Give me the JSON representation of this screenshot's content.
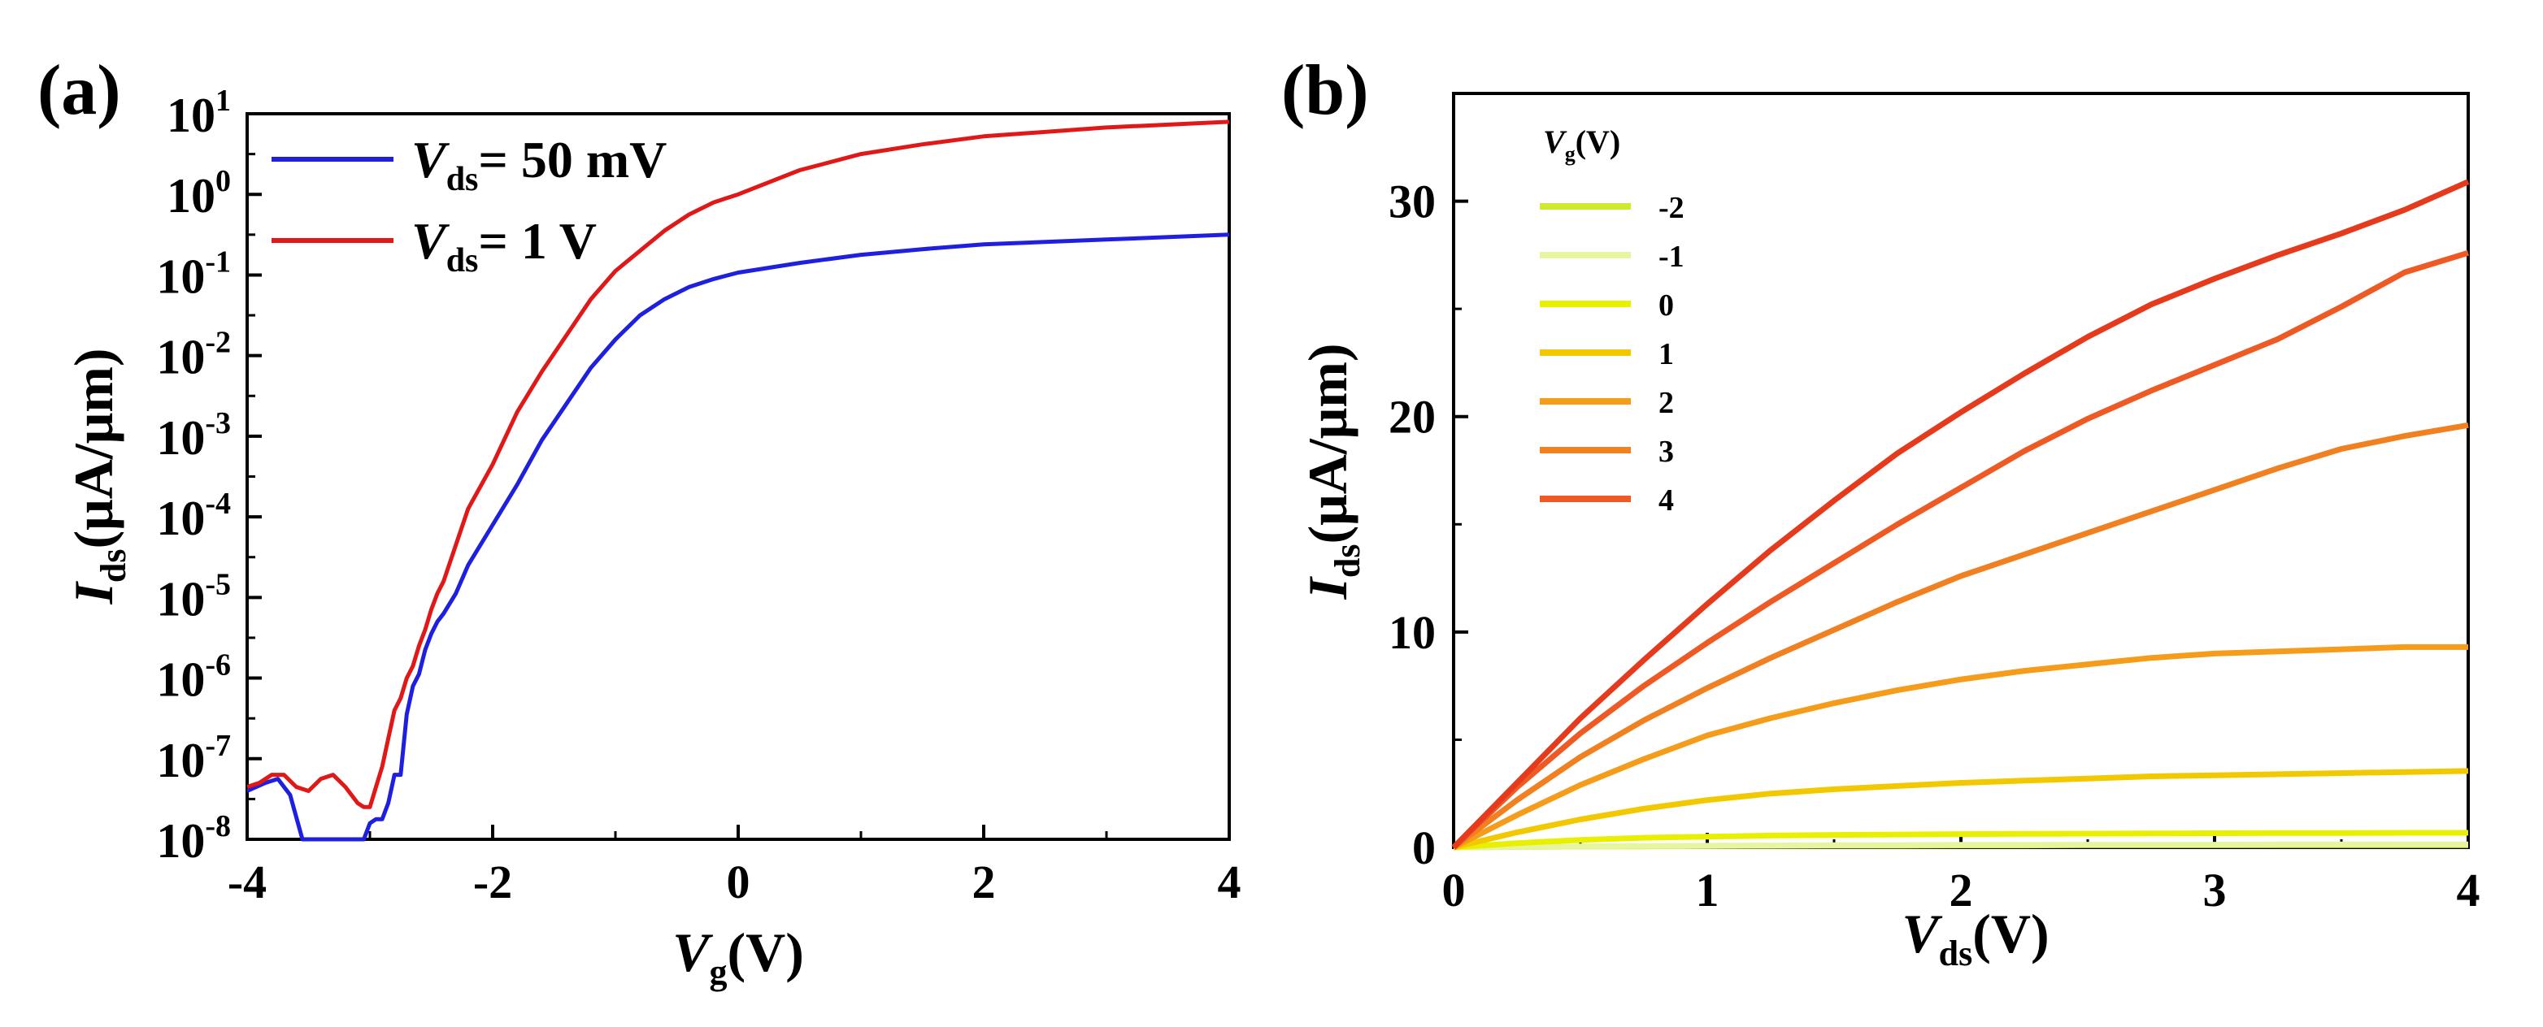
{
  "figure": {
    "panel_a_label": "(a)",
    "panel_b_label": "(b)"
  },
  "chart_data": [
    {
      "type": "line",
      "yscale": "log",
      "xlim": [
        -4,
        4
      ],
      "ylim": [
        1e-08,
        10
      ],
      "xticks": [
        "-4",
        "-2",
        "0",
        "2",
        "4"
      ],
      "xtick_values": [
        -4,
        -2,
        0,
        2,
        4
      ],
      "yticks": [
        {
          "base": "10",
          "exp": "1",
          "value": 1
        },
        {
          "base": "10",
          "exp": "0",
          "value": 0
        },
        {
          "base": "10",
          "exp": "-1",
          "value": -1
        },
        {
          "base": "10",
          "exp": "-2",
          "value": -2
        },
        {
          "base": "10",
          "exp": "-3",
          "value": -3
        },
        {
          "base": "10",
          "exp": "-4",
          "value": -4
        },
        {
          "base": "10",
          "exp": "-5",
          "value": -5
        },
        {
          "base": "10",
          "exp": "-6",
          "value": -6
        },
        {
          "base": "10",
          "exp": "-7",
          "value": -7
        },
        {
          "base": "10",
          "exp": "-8",
          "value": -8
        }
      ],
      "xlabel": {
        "main": "V",
        "sub": "g",
        "tail": "(V)"
      },
      "ylabel": {
        "main": "I",
        "sub": "ds",
        "tail": "(μA/μm)"
      },
      "legend_position": "top-left",
      "series": [
        {
          "name": "Vds = 50 mV",
          "legend_main": "V",
          "legend_sub": "ds",
          "legend_tail": "= 50 mV",
          "color": "#1f1fe0",
          "x": [
            -4.0,
            -3.85,
            -3.75,
            -3.65,
            -3.55,
            -3.05,
            -3.0,
            -2.95,
            -2.9,
            -2.85,
            -2.8,
            -2.75,
            -2.7,
            -2.65,
            -2.6,
            -2.55,
            -2.5,
            -2.45,
            -2.4,
            -2.3,
            -2.2,
            -2.0,
            -1.8,
            -1.6,
            -1.4,
            -1.2,
            -1.0,
            -0.8,
            -0.6,
            -0.4,
            -0.2,
            0.0,
            0.5,
            1.0,
            1.5,
            2.0,
            3.0,
            4.0
          ],
          "y": [
            -7.4,
            -7.3,
            -7.25,
            -7.45,
            -8.0,
            -8.0,
            -7.8,
            -7.75,
            -7.75,
            -7.55,
            -7.2,
            -7.2,
            -6.45,
            -6.1,
            -5.95,
            -5.65,
            -5.45,
            -5.3,
            -5.2,
            -4.95,
            -4.6,
            -4.1,
            -3.6,
            -3.05,
            -2.6,
            -2.15,
            -1.8,
            -1.5,
            -1.3,
            -1.15,
            -1.05,
            -0.97,
            -0.85,
            -0.75,
            -0.68,
            -0.62,
            -0.56,
            -0.5
          ]
        },
        {
          "name": "Vds = 1 V",
          "legend_main": "V",
          "legend_sub": "ds",
          "legend_tail": "= 1 V",
          "color": "#e01818",
          "x": [
            -4.0,
            -3.9,
            -3.8,
            -3.7,
            -3.6,
            -3.5,
            -3.4,
            -3.3,
            -3.2,
            -3.1,
            -3.05,
            -3.0,
            -2.95,
            -2.9,
            -2.85,
            -2.8,
            -2.75,
            -2.7,
            -2.65,
            -2.6,
            -2.55,
            -2.5,
            -2.45,
            -2.4,
            -2.3,
            -2.2,
            -2.0,
            -1.8,
            -1.6,
            -1.4,
            -1.2,
            -1.0,
            -0.8,
            -0.6,
            -0.4,
            -0.2,
            0.0,
            0.5,
            1.0,
            1.5,
            2.0,
            3.0,
            4.0
          ],
          "y": [
            -7.35,
            -7.3,
            -7.2,
            -7.2,
            -7.35,
            -7.4,
            -7.25,
            -7.2,
            -7.35,
            -7.55,
            -7.6,
            -7.6,
            -7.35,
            -7.1,
            -6.75,
            -6.4,
            -6.25,
            -6.0,
            -5.85,
            -5.6,
            -5.4,
            -5.15,
            -4.95,
            -4.8,
            -4.35,
            -3.9,
            -3.35,
            -2.7,
            -2.2,
            -1.75,
            -1.3,
            -0.95,
            -0.7,
            -0.45,
            -0.25,
            -0.1,
            0.0,
            0.3,
            0.5,
            0.62,
            0.72,
            0.83,
            0.9
          ]
        }
      ]
    },
    {
      "type": "line",
      "xlim": [
        0,
        4
      ],
      "ylim": [
        0,
        35
      ],
      "xticks": [
        "0",
        "1",
        "2",
        "3",
        "4"
      ],
      "xtick_values": [
        0,
        1,
        2,
        3,
        4
      ],
      "yticks": [
        "0",
        "10",
        "20",
        "30"
      ],
      "ytick_values": [
        0,
        10,
        20,
        30
      ],
      "xlabel": {
        "main": "V",
        "sub": "ds",
        "tail": "(V)"
      },
      "ylabel": {
        "main": "I",
        "sub": "ds",
        "tail": "(μA/μm)"
      },
      "legend_title": {
        "main": "V",
        "sub": "g",
        "tail": "(V)"
      },
      "legend_position": "top-left",
      "x": [
        0,
        0.25,
        0.5,
        0.75,
        1.0,
        1.25,
        1.5,
        1.75,
        2.0,
        2.25,
        2.5,
        2.75,
        3.0,
        3.25,
        3.5,
        3.75,
        4.0
      ],
      "series": [
        {
          "name": "-2",
          "color": "#d0e830",
          "values": [
            0,
            0.02,
            0.04,
            0.05,
            0.06,
            0.07,
            0.08,
            0.08,
            0.09,
            0.09,
            0.1,
            0.1,
            0.1,
            0.1,
            0.1,
            0.1,
            0.1
          ]
        },
        {
          "name": "-1",
          "color": "#e6f5a0",
          "values": [
            0,
            0.03,
            0.05,
            0.07,
            0.08,
            0.09,
            0.1,
            0.11,
            0.12,
            0.12,
            0.13,
            0.13,
            0.13,
            0.14,
            0.14,
            0.14,
            0.14
          ]
        },
        {
          "name": "0",
          "color": "#e8f000",
          "values": [
            0,
            0.2,
            0.35,
            0.45,
            0.5,
            0.55,
            0.58,
            0.6,
            0.62,
            0.63,
            0.64,
            0.65,
            0.66,
            0.67,
            0.67,
            0.68,
            0.68
          ]
        },
        {
          "name": "1",
          "color": "#f2c800",
          "values": [
            0,
            0.7,
            1.3,
            1.8,
            2.2,
            2.5,
            2.7,
            2.85,
            3.0,
            3.1,
            3.2,
            3.3,
            3.35,
            3.4,
            3.45,
            3.5,
            3.55
          ]
        },
        {
          "name": "2",
          "color": "#f59c1a",
          "values": [
            0,
            1.5,
            2.9,
            4.1,
            5.2,
            6.0,
            6.7,
            7.3,
            7.8,
            8.2,
            8.5,
            8.8,
            9.0,
            9.1,
            9.2,
            9.3,
            9.3
          ]
        },
        {
          "name": "3",
          "color": "#f08020",
          "values": [
            0,
            2.2,
            4.2,
            5.9,
            7.4,
            8.8,
            10.1,
            11.4,
            12.6,
            13.6,
            14.6,
            15.6,
            16.6,
            17.6,
            18.5,
            19.1,
            19.6
          ]
        },
        {
          "name": "4",
          "color": "#ef5a24",
          "values": [
            0,
            2.8,
            5.3,
            7.5,
            9.5,
            11.4,
            13.2,
            15.0,
            16.7,
            18.4,
            19.9,
            21.2,
            22.4,
            23.6,
            25.1,
            26.7,
            27.6
          ]
        },
        {
          "name": "",
          "color": "#e63a1c",
          "legend": false,
          "values": [
            0,
            3.0,
            6.0,
            8.7,
            11.3,
            13.8,
            16.1,
            18.3,
            20.2,
            22.0,
            23.7,
            25.2,
            26.4,
            27.5,
            28.5,
            29.6,
            30.9
          ]
        }
      ]
    }
  ]
}
